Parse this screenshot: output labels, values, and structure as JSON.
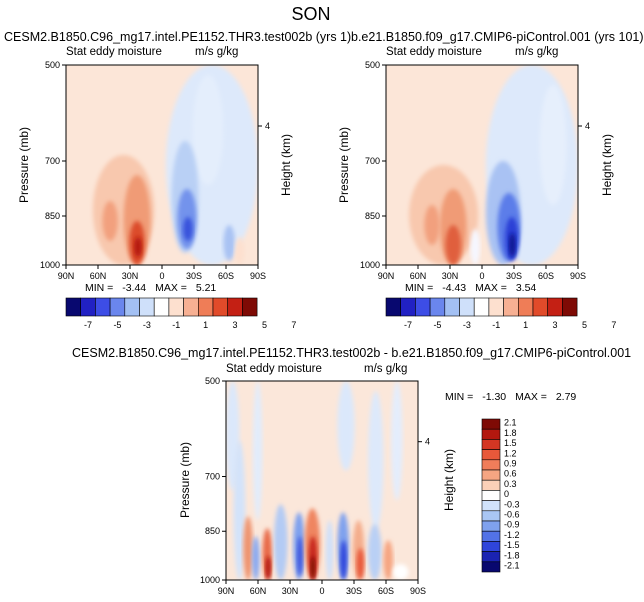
{
  "figure_title": "SON",
  "chart_data": [
    {
      "type": "heatmap",
      "title": "CESM2.B1850.C96_mg17.intel.PE1152.THR3.test002b (yrs 1)",
      "left_label": "Stat eddy moisture",
      "right_label": "m/s g/kg",
      "ylabel": "Pressure (mb)",
      "y2label": "Height (km)",
      "y2_ticks": [
        "4"
      ],
      "xticks": [
        "90N",
        "60N",
        "30N",
        "0",
        "30S",
        "60S",
        "90S"
      ],
      "yticks": [
        "500",
        "700",
        "850",
        "1000"
      ],
      "ylim": [
        1000,
        500
      ],
      "min_label": "MIN =",
      "min_value": "-3.44",
      "max_label": "MAX =",
      "max_value": "5.21",
      "colorbar_labels": [
        "-7",
        "-5",
        "-3",
        "-1",
        "1",
        "3",
        "5",
        "7"
      ]
    },
    {
      "type": "heatmap",
      "title": "b.e21.B1850.f09_g17.CMIP6-piControl.001 (yrs 101)",
      "left_label": "Stat eddy moisture",
      "right_label": "m/s g/kg",
      "ylabel": "Pressure (mb)",
      "y2label": "Height (km)",
      "y2_ticks": [
        "4"
      ],
      "xticks": [
        "90N",
        "60N",
        "30N",
        "0",
        "30S",
        "60S",
        "90S"
      ],
      "yticks": [
        "500",
        "700",
        "850",
        "1000"
      ],
      "ylim": [
        1000,
        500
      ],
      "min_label": "MIN =",
      "min_value": "-4.43",
      "max_label": "MAX =",
      "max_value": "3.54",
      "colorbar_labels": [
        "-7",
        "-5",
        "-3",
        "-1",
        "1",
        "3",
        "5",
        "7"
      ]
    },
    {
      "type": "heatmap",
      "title": "CESM2.B1850.C96_mg17.intel.PE1152.THR3.test002b - b.e21.B1850.f09_g17.CMIP6-piControl.001",
      "left_label": "Stat eddy moisture",
      "right_label": "m/s g/kg",
      "ylabel": "Pressure (mb)",
      "y2label": "Height (km)",
      "y2_ticks": [
        "4"
      ],
      "xticks": [
        "90N",
        "60N",
        "30N",
        "0",
        "30S",
        "60S",
        "90S"
      ],
      "yticks": [
        "500",
        "700",
        "850",
        "1000"
      ],
      "ylim": [
        1000,
        500
      ],
      "min_label": "MIN =",
      "min_value": "-1.30",
      "max_label": "MAX =",
      "max_value": "2.79",
      "colorbar_labels": [
        "2.1",
        "1.8",
        "1.5",
        "1.2",
        "0.9",
        "0.6",
        "0.3",
        "0",
        "-0.3",
        "-0.6",
        "-0.9",
        "-1.2",
        "-1.5",
        "-1.8",
        "-2.1"
      ]
    }
  ]
}
